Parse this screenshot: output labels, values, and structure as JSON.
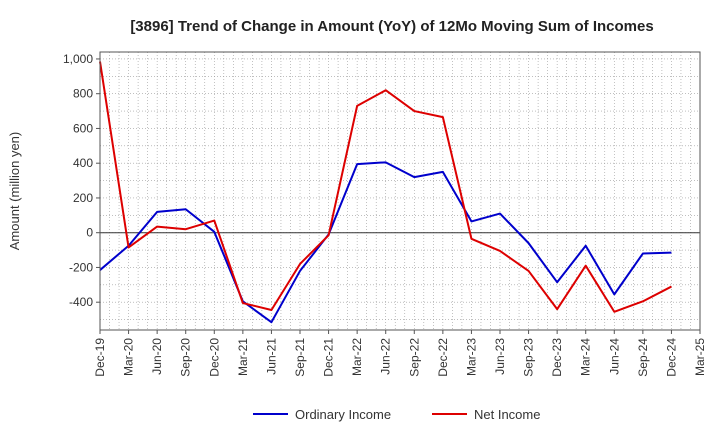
{
  "chart_data": {
    "type": "line",
    "title": "[3896]  Trend of Change in Amount (YoY) of 12Mo Moving Sum of Incomes",
    "ylabel": "Amount (million yen)",
    "xlabel": "",
    "ylim": [
      -560,
      1040
    ],
    "yticks": [
      -400,
      -200,
      0,
      200,
      400,
      600,
      800,
      1000
    ],
    "ytick_labels": [
      "-400",
      "-200",
      "0",
      "200",
      "400",
      "600",
      "800",
      "1,000"
    ],
    "categories": [
      "Dec-19",
      "Mar-20",
      "Jun-20",
      "Sep-20",
      "Dec-20",
      "Mar-21",
      "Jun-21",
      "Sep-21",
      "Dec-21",
      "Mar-22",
      "Jun-22",
      "Sep-22",
      "Dec-22",
      "Mar-23",
      "Jun-23",
      "Sep-23",
      "Dec-23",
      "Mar-24",
      "Jun-24",
      "Sep-24",
      "Dec-24",
      "Mar-25"
    ],
    "grid": true,
    "legend_position": "bottom",
    "series": [
      {
        "name": "Ordinary Income",
        "color": "#0000cc",
        "values": [
          -215,
          -75,
          120,
          135,
          5,
          -395,
          -515,
          -220,
          -10,
          395,
          405,
          320,
          350,
          65,
          110,
          -60,
          -285,
          -75,
          -355,
          -120,
          -115,
          null
        ]
      },
      {
        "name": "Net Income",
        "color": "#dd0000",
        "values": [
          985,
          -85,
          35,
          20,
          70,
          -405,
          -445,
          -180,
          -15,
          730,
          820,
          700,
          665,
          -35,
          -105,
          -220,
          -440,
          -190,
          -455,
          -395,
          -310,
          null
        ]
      }
    ]
  }
}
